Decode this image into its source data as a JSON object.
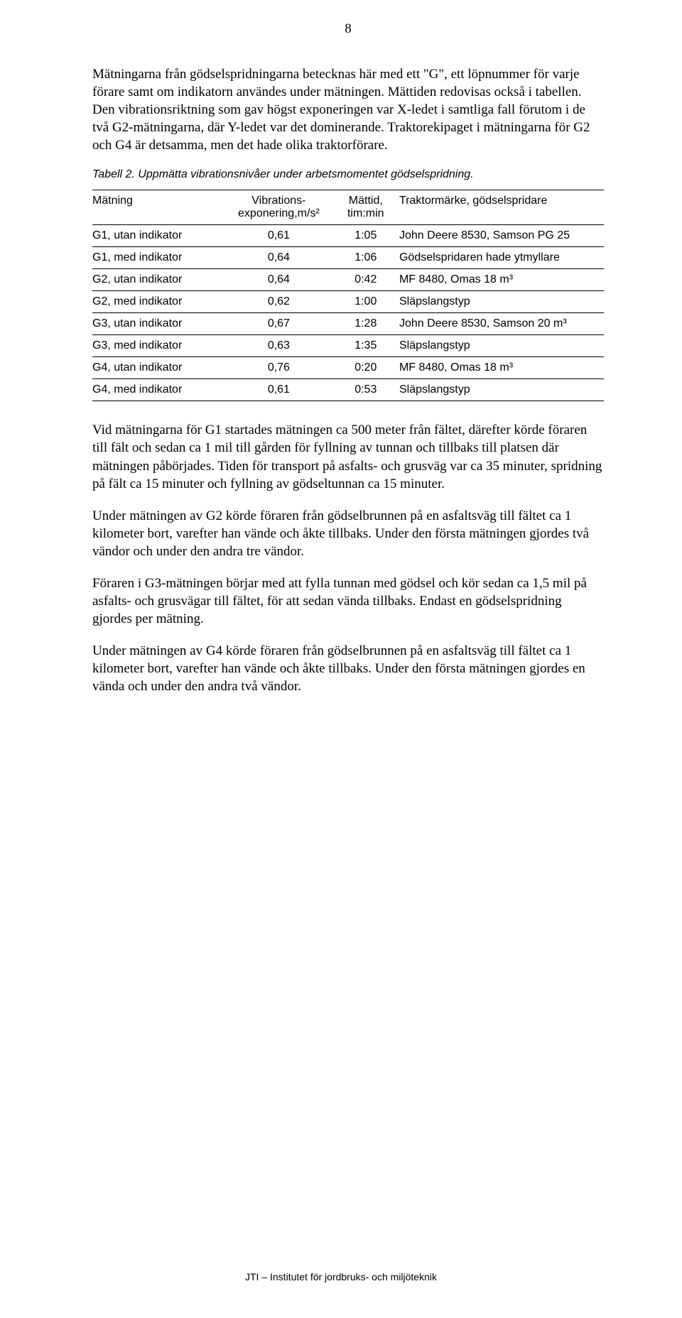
{
  "page_number": "8",
  "paragraphs": {
    "p1": "Mätningarna från gödselspridningarna betecknas här med ett \"G\", ett löpnummer för varje förare samt om indikatorn användes under mätningen. Mättiden redovisas också i tabellen. Den vibrationsriktning som gav högst exponeringen var X-ledet i samtliga fall förutom i de två G2-mätningarna, där Y-ledet var det dominerande. Traktorekipaget i mätningarna för G2 och G4 är detsamma, men det hade olika traktorförare.",
    "p2": "Vid mätningarna för G1 startades mätningen ca 500 meter från fältet, därefter körde föraren till fält och sedan ca 1 mil till gården för fyllning av tunnan och tillbaks till platsen där mätningen påbörjades. Tiden för transport på asfalts- och grusväg var ca 35 minuter, spridning på fält ca 15 minuter och fyllning av gödseltunnan ca 15 minuter.",
    "p3": "Under mätningen av G2 körde föraren från gödselbrunnen på en asfaltsväg till fältet ca 1 kilometer bort, varefter han vände och åkte tillbaks. Under den första mätningen gjordes två vändor och under den andra tre vändor.",
    "p4": "Föraren i G3-mätningen börjar med att fylla tunnan med gödsel och kör sedan ca 1,5 mil på asfalts- och grusvägar till fältet, för att sedan vända tillbaks. Endast en gödselspridning gjordes per mätning.",
    "p5": "Under mätningen av G4 körde föraren från gödselbrunnen på en asfaltsväg till fältet ca 1 kilometer bort, varefter han vände och åkte tillbaks. Under den första mätningen gjordes en vända och under den andra två vändor."
  },
  "table": {
    "caption": "Tabell 2. Uppmätta vibrationsnivåer under arbetsmomentet gödselspridning.",
    "headers": {
      "measurement": "Mätning",
      "vibration": "Vibrations-\nexponering,m/s²",
      "time": "Mättid,\ntim:min",
      "tractor": "Traktormärke, gödselspridare"
    },
    "rows": [
      {
        "measurement": "G1, utan indikator",
        "vibration": "0,61",
        "time": "1:05",
        "tractor": "John Deere 8530, Samson PG 25"
      },
      {
        "measurement": "G1, med indikator",
        "vibration": "0,64",
        "time": "1:06",
        "tractor": "Gödselspridaren hade ytmyllare"
      },
      {
        "measurement": "G2, utan indikator",
        "vibration": "0,64",
        "time": "0:42",
        "tractor": "MF 8480, Omas 18 m³"
      },
      {
        "measurement": "G2, med indikator",
        "vibration": "0,62",
        "time": "1:00",
        "tractor": "Släpslangstyp"
      },
      {
        "measurement": "G3, utan indikator",
        "vibration": "0,67",
        "time": "1:28",
        "tractor": "John Deere 8530, Samson 20 m³"
      },
      {
        "measurement": "G3, med indikator",
        "vibration": "0,63",
        "time": "1:35",
        "tractor": "Släpslangstyp"
      },
      {
        "measurement": "G4, utan indikator",
        "vibration": "0,76",
        "time": "0:20",
        "tractor": "MF 8480, Omas 18 m³"
      },
      {
        "measurement": "G4, med indikator",
        "vibration": "0,61",
        "time": "0:53",
        "tractor": "Släpslangstyp"
      }
    ]
  },
  "footer": "JTI – Institutet för jordbruks- och miljöteknik"
}
